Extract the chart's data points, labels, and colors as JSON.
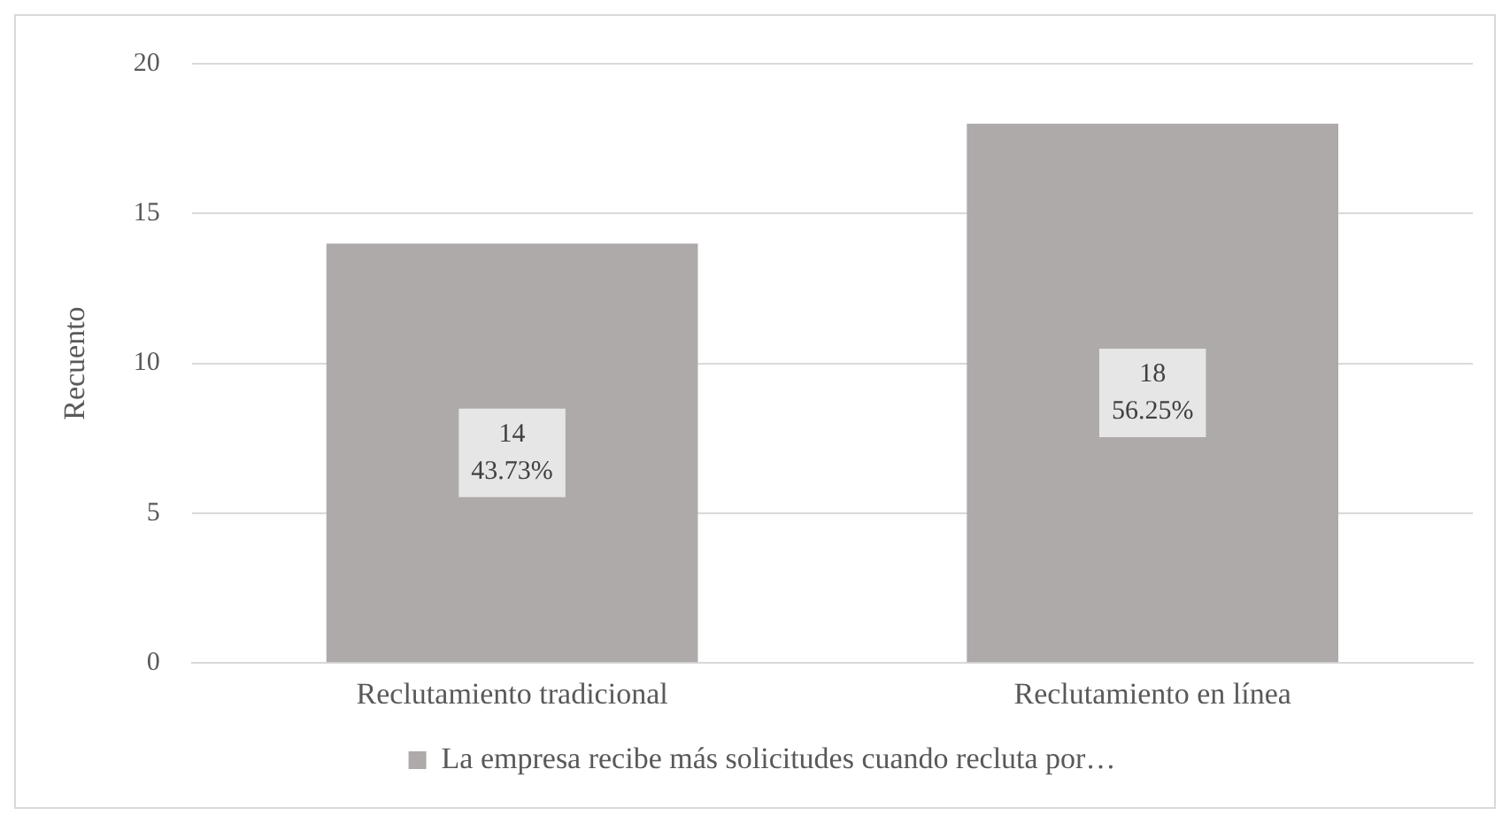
{
  "chart_data": {
    "type": "bar",
    "ylabel": "Recuento",
    "categories": [
      "Reclutamiento tradicional",
      "Reclutamiento en línea"
    ],
    "series": [
      {
        "name": "La empresa recibe más solicitudes cuando recluta por…",
        "color": "#aeaaaa",
        "values": [
          14,
          18
        ],
        "value_labels": [
          "14\n43.73%",
          "18\n56.25%"
        ]
      }
    ],
    "ylim": [
      0,
      20
    ],
    "yticks": [
      0,
      5,
      10,
      15,
      20
    ],
    "grid": "y",
    "legend": "bottom"
  }
}
